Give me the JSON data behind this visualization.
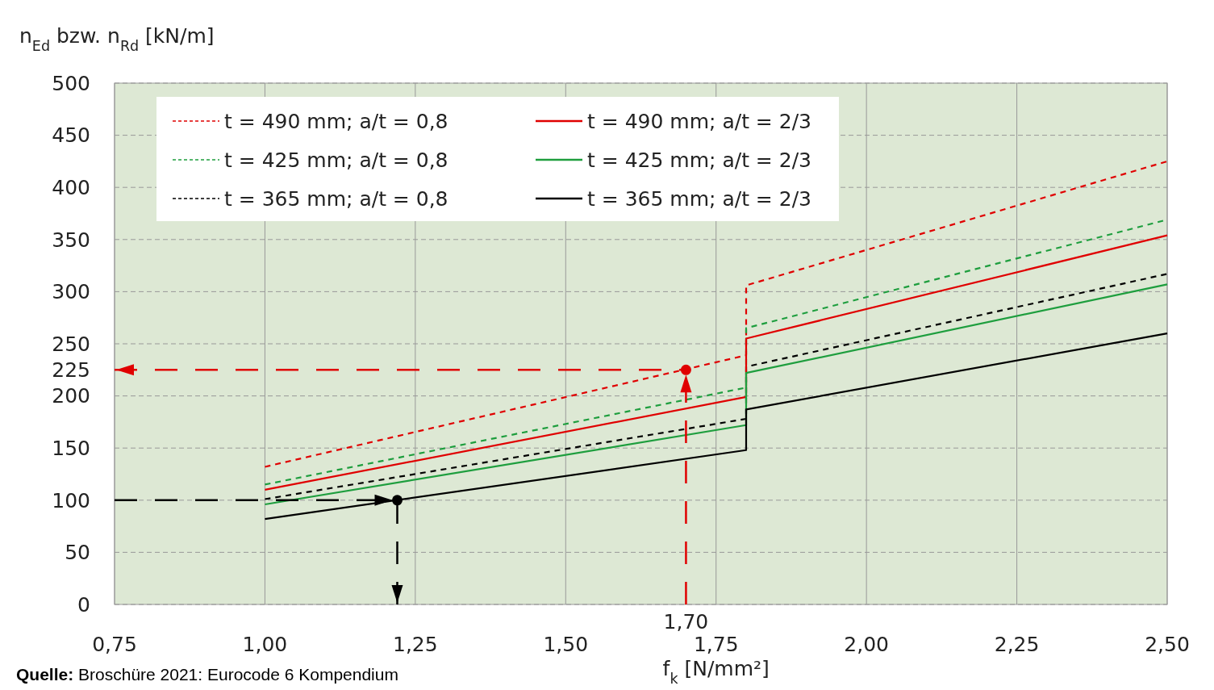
{
  "chart_data": {
    "type": "line",
    "ylabel": "n$_{Ed}$ bzw. n$_{Rd}$ [kN/m]",
    "xlabel": "f$_{k}$ [N/mm²]",
    "xlim": [
      0.75,
      2.5
    ],
    "xticks": [
      {
        "value": 0.75,
        "label": "0,75"
      },
      {
        "value": 1,
        "label": "1,00"
      },
      {
        "value": 1.25,
        "label": "1,25"
      },
      {
        "value": 1.5,
        "label": "1,50"
      },
      {
        "value": 1.75,
        "label": "1,75"
      },
      {
        "value": 2,
        "label": "2,00"
      },
      {
        "value": 2.25,
        "label": "2,25"
      },
      {
        "value": 2.5,
        "label": "2,50"
      }
    ],
    "ylim": [
      0,
      500
    ],
    "yticks": [
      0,
      50,
      100,
      150,
      200,
      250,
      300,
      350,
      400,
      450,
      500
    ],
    "grid": true,
    "legend": "top left",
    "series": [
      {
        "name": "t = 490 mm; a/t = 0,8",
        "color": "#e00000",
        "line_style": "dashed",
        "x": [
          1,
          1.8,
          1.8,
          2.5
        ],
        "values": [
          132,
          239,
          306,
          425
        ]
      },
      {
        "name": "t = 425 mm; a/t = 0,8",
        "color": "#1e9e3e",
        "line_style": "dashed",
        "x": [
          1,
          1.8,
          1.8,
          2.5
        ],
        "values": [
          115,
          208,
          265,
          369
        ]
      },
      {
        "name": "t = 365 mm; a/t = 0,8",
        "color": "#000000",
        "line_style": "dashed",
        "x": [
          1,
          1.8,
          1.8,
          2.5
        ],
        "values": [
          101,
          178,
          228,
          317
        ]
      },
      {
        "name": "t = 490 mm; a/t = 2/3",
        "color": "#e00000",
        "line_style": "solid",
        "x": [
          1,
          1.8,
          1.8,
          2.5
        ],
        "values": [
          110,
          199,
          255,
          354
        ]
      },
      {
        "name": "t = 425 mm; a/t = 2/3",
        "color": "#1e9e3e",
        "line_style": "solid",
        "x": [
          1,
          1.8,
          1.8,
          2.5
        ],
        "values": [
          96,
          172,
          222,
          307
        ]
      },
      {
        "name": "t = 365 mm; a/t = 2/3",
        "color": "#000000",
        "line_style": "solid",
        "x": [
          1,
          1.8,
          1.8,
          2.5
        ],
        "values": [
          82,
          148,
          187,
          260
        ]
      }
    ],
    "ref_lines": [
      {
        "axis": "y",
        "value": 225,
        "label": "225",
        "color": "#e00000",
        "line_style": "dashed"
      },
      {
        "axis": "x",
        "value": 1.7,
        "label": "1,70",
        "color": "#e00000",
        "line_style": "dashed"
      },
      {
        "axis": "y",
        "value": 100,
        "color": "#000000",
        "line_style": "dashed"
      },
      {
        "axis": "x",
        "value": 1.22,
        "color": "#000000",
        "line_style": "dashed"
      }
    ],
    "annotations": [
      "Quelle: Broschüre 2021: Eurocode 6 Kompendium"
    ]
  }
}
